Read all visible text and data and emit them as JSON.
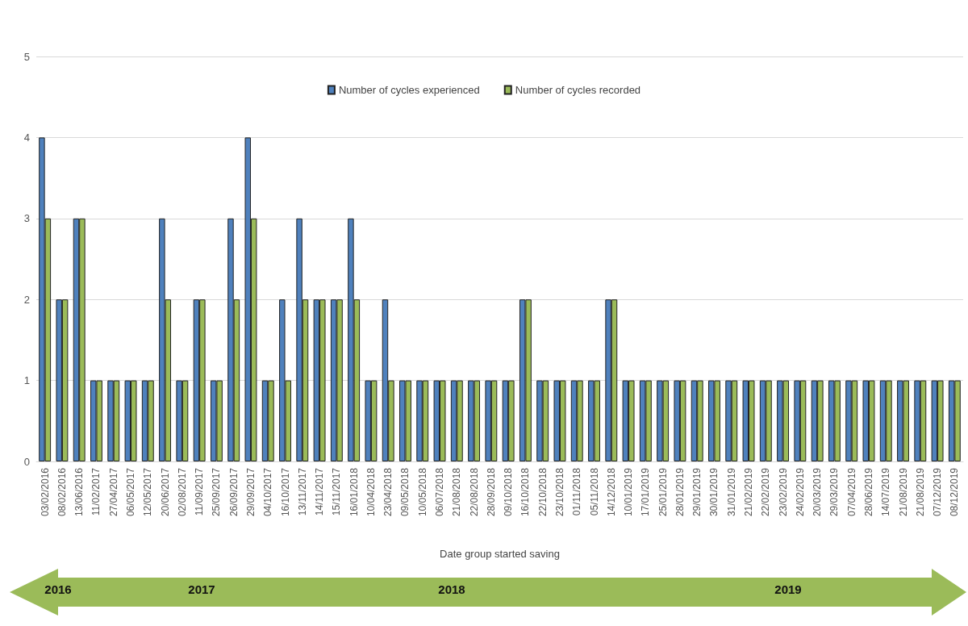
{
  "chart_data": {
    "type": "bar",
    "xlabel": "Date group started saving",
    "categories": [
      "03/02/2016",
      "08/02/2016",
      "13/06/2016",
      "11/02/2017",
      "27/04/2017",
      "06/05/2017",
      "12/05/2017",
      "20/06/2017",
      "02/08/2017",
      "11/09/2017",
      "25/09/2017",
      "26/09/2017",
      "29/09/2017",
      "04/10/2017",
      "16/10/2017",
      "13/11/2017",
      "14/11/2017",
      "15/11/2017",
      "16/01/2018",
      "10/04/2018",
      "23/04/2018",
      "09/05/2018",
      "10/05/2018",
      "06/07/2018",
      "21/08/2018",
      "22/08/2018",
      "28/09/2018",
      "09/10/2018",
      "16/10/2018",
      "22/10/2018",
      "23/10/2018",
      "01/11/2018",
      "05/11/2018",
      "14/12/2018",
      "10/01/2019",
      "17/01/2019",
      "25/01/2019",
      "28/01/2019",
      "29/01/2019",
      "30/01/2019",
      "31/01/2019",
      "21/02/2019",
      "22/02/2019",
      "23/02/2019",
      "24/02/2019",
      "20/03/2019",
      "29/03/2019",
      "07/04/2019",
      "28/06/2019",
      "14/07/2019",
      "21/08/2019",
      "21/08/2019",
      "07/12/2019",
      "08/12/2019"
    ],
    "series": [
      {
        "name": "Number of cycles experienced",
        "color": "#4f81bd",
        "values": [
          4,
          2,
          3,
          1,
          1,
          1,
          1,
          3,
          1,
          2,
          1,
          3,
          4,
          1,
          2,
          3,
          2,
          2,
          3,
          1,
          2,
          1,
          1,
          1,
          1,
          1,
          1,
          1,
          2,
          1,
          1,
          1,
          1,
          2,
          1,
          1,
          1,
          1,
          1,
          1,
          1,
          1,
          1,
          1,
          1,
          1,
          1,
          1,
          1,
          1,
          1,
          1,
          1,
          1
        ]
      },
      {
        "name": "Number of cycles recorded",
        "color": "#9bbb59",
        "values": [
          3,
          2,
          3,
          1,
          1,
          1,
          1,
          2,
          1,
          2,
          1,
          2,
          3,
          1,
          1,
          2,
          2,
          2,
          2,
          1,
          1,
          1,
          1,
          1,
          1,
          1,
          1,
          1,
          2,
          1,
          1,
          1,
          1,
          2,
          1,
          1,
          1,
          1,
          1,
          1,
          1,
          1,
          1,
          1,
          1,
          1,
          1,
          1,
          1,
          1,
          1,
          1,
          1,
          1
        ]
      }
    ],
    "ylim": [
      0,
      5
    ],
    "yticks": [
      0,
      1,
      2,
      3,
      4,
      5
    ],
    "grid": "y",
    "legend": "top",
    "annotations": [
      "2016",
      "2017",
      "2018",
      "2019"
    ]
  }
}
